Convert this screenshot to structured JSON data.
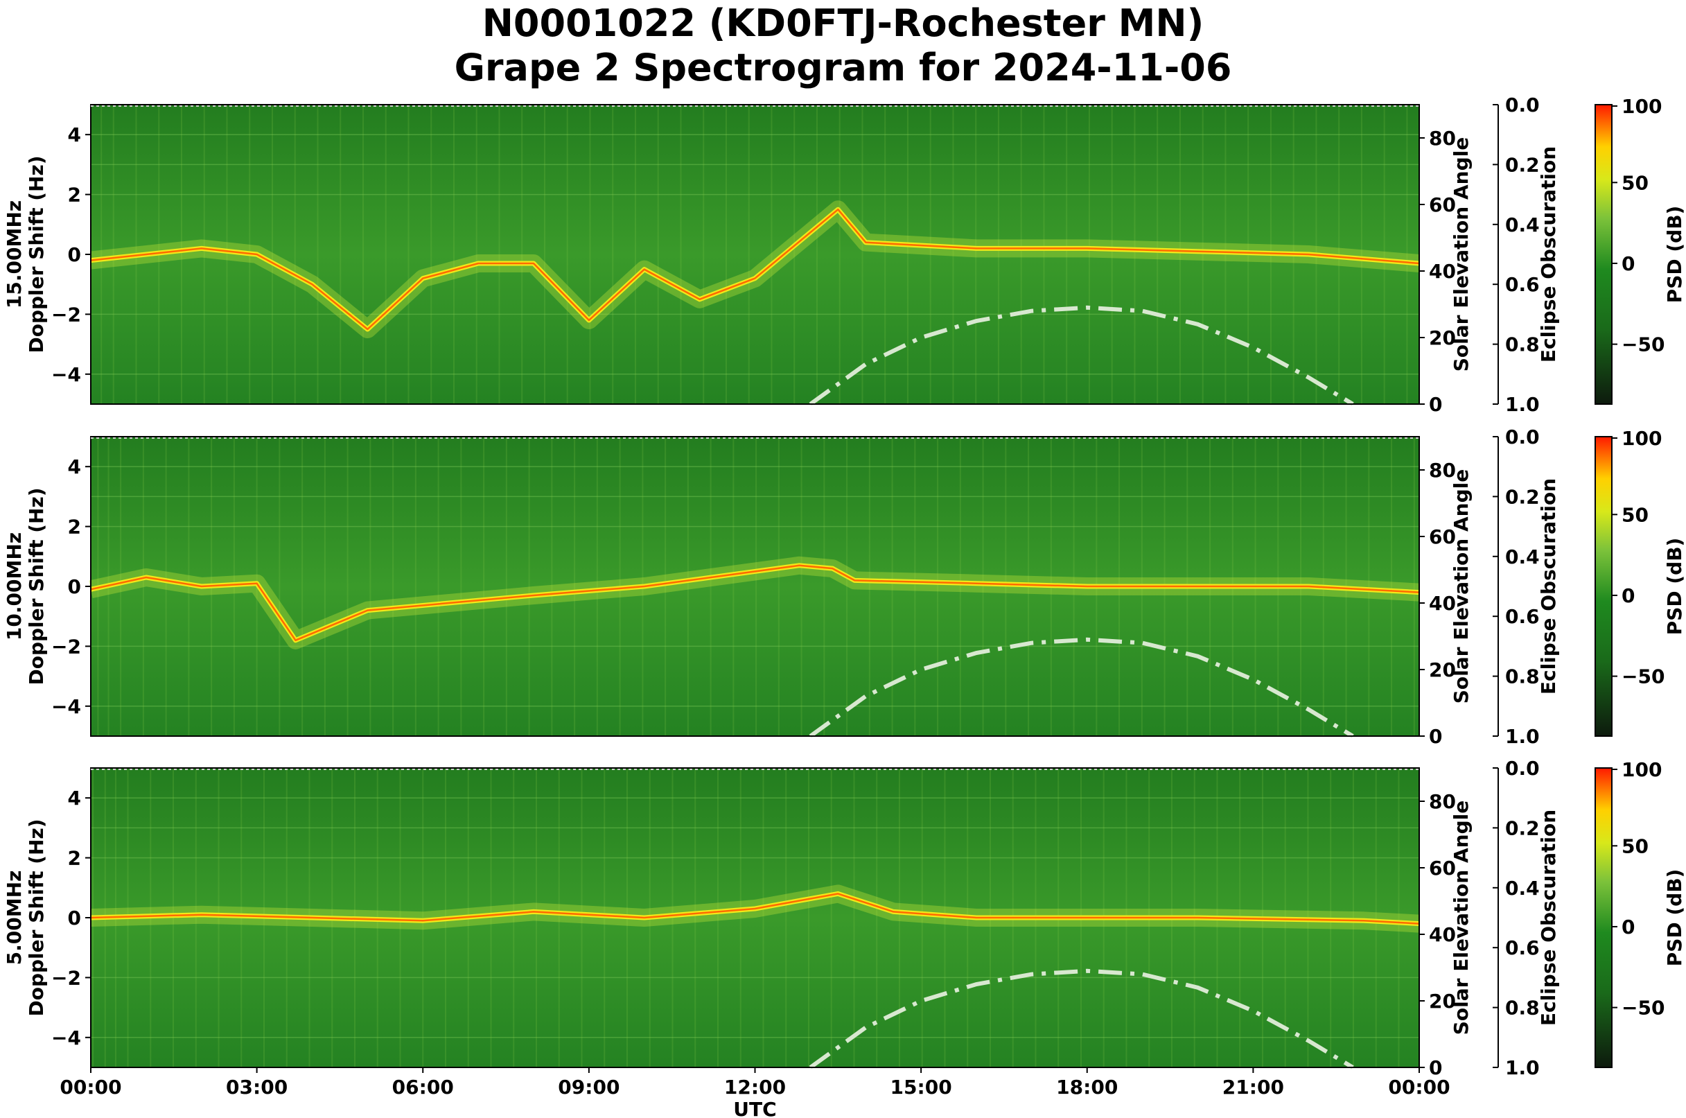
{
  "title_line1": "N0001022 (KD0FTJ-Rochester MN)",
  "title_line2": "Grape 2 Spectrogram for 2024-11-06",
  "x_axis": {
    "label": "UTC",
    "tick_labels": [
      "00:00",
      "03:00",
      "06:00",
      "09:00",
      "12:00",
      "15:00",
      "18:00",
      "21:00",
      "00:00"
    ],
    "range_hours": [
      0,
      24
    ]
  },
  "colors": {
    "colormap": [
      "#0d1a0d",
      "#1a5a1a",
      "#1f7f1f",
      "#3fa82f",
      "#a8d82f",
      "#f2f20a",
      "#ff9f00",
      "#ff1a00"
    ],
    "elevation_curve": "#d8e8d0"
  },
  "chart_data": [
    {
      "type": "heatmap",
      "panel": "15.00MHz",
      "ylabel_line1": "15.00MHz",
      "ylabel_line2": "Doppler Shift (Hz)",
      "ylim": [
        -5,
        5
      ],
      "yticks": [
        "4",
        "2",
        "0",
        "−2",
        "−4"
      ],
      "right_axis_label": "Solar Elevation Angle",
      "right_ylim": [
        0,
        90
      ],
      "right_ticks": [
        "80",
        "60",
        "40",
        "20",
        "0"
      ],
      "eclipse_label": "Eclipse Obscuration",
      "eclipse_ticks": [
        "0.0",
        "0.2",
        "0.4",
        "0.6",
        "0.8",
        "1.0"
      ],
      "colorbar_label": "PSD (dB)",
      "colorbar_ticks": [
        "100",
        "50",
        "0",
        "−50"
      ],
      "doppler_trace_hz": [
        [
          0,
          -0.2
        ],
        [
          1,
          0
        ],
        [
          2,
          0.2
        ],
        [
          3,
          0
        ],
        [
          4,
          -1
        ],
        [
          5,
          -2.5
        ],
        [
          6,
          -0.8
        ],
        [
          7,
          -0.3
        ],
        [
          8,
          -0.3
        ],
        [
          9,
          -2.2
        ],
        [
          10,
          -0.5
        ],
        [
          11,
          -1.5
        ],
        [
          12,
          -0.8
        ],
        [
          13.5,
          1.5
        ],
        [
          14,
          0.4
        ],
        [
          16,
          0.2
        ],
        [
          18,
          0.2
        ],
        [
          20,
          0.1
        ],
        [
          22,
          0
        ],
        [
          24,
          -0.3
        ]
      ],
      "solar_elevation_deg": [
        [
          13,
          0
        ],
        [
          14,
          12
        ],
        [
          15,
          20
        ],
        [
          16,
          25
        ],
        [
          17,
          28
        ],
        [
          18,
          29
        ],
        [
          19,
          28
        ],
        [
          20,
          24
        ],
        [
          21,
          17
        ],
        [
          22,
          8
        ],
        [
          22.8,
          0
        ]
      ]
    },
    {
      "type": "heatmap",
      "panel": "10.00MHz",
      "ylabel_line1": "10.00MHz",
      "ylabel_line2": "Doppler Shift (Hz)",
      "ylim": [
        -5,
        5
      ],
      "yticks": [
        "4",
        "2",
        "0",
        "−2",
        "−4"
      ],
      "right_axis_label": "Solar Elevation Angle",
      "right_ylim": [
        0,
        90
      ],
      "right_ticks": [
        "80",
        "60",
        "40",
        "20",
        "0"
      ],
      "eclipse_label": "Eclipse Obscuration",
      "eclipse_ticks": [
        "0.0",
        "0.2",
        "0.4",
        "0.6",
        "0.8",
        "1.0"
      ],
      "colorbar_label": "PSD (dB)",
      "colorbar_ticks": [
        "100",
        "50",
        "0",
        "−50"
      ],
      "doppler_trace_hz": [
        [
          0,
          -0.1
        ],
        [
          1,
          0.3
        ],
        [
          2,
          0
        ],
        [
          3,
          0.1
        ],
        [
          3.7,
          -1.8
        ],
        [
          5,
          -0.8
        ],
        [
          8,
          -0.3
        ],
        [
          10,
          0
        ],
        [
          12.8,
          0.7
        ],
        [
          13.4,
          0.6
        ],
        [
          13.8,
          0.2
        ],
        [
          16,
          0.1
        ],
        [
          18,
          0
        ],
        [
          20,
          0
        ],
        [
          22,
          0
        ],
        [
          24,
          -0.2
        ]
      ],
      "solar_elevation_deg": [
        [
          13,
          0
        ],
        [
          14,
          12
        ],
        [
          15,
          20
        ],
        [
          16,
          25
        ],
        [
          17,
          28
        ],
        [
          18,
          29
        ],
        [
          19,
          28
        ],
        [
          20,
          24
        ],
        [
          21,
          17
        ],
        [
          22,
          8
        ],
        [
          22.8,
          0
        ]
      ]
    },
    {
      "type": "heatmap",
      "panel": "5.00MHz",
      "ylabel_line1": "5.00MHz",
      "ylabel_line2": "Doppler Shift (Hz)",
      "ylim": [
        -5,
        5
      ],
      "yticks": [
        "4",
        "2",
        "0",
        "−2",
        "−4"
      ],
      "right_axis_label": "Solar Elevation Angle",
      "right_ylim": [
        0,
        90
      ],
      "right_ticks": [
        "80",
        "60",
        "40",
        "20",
        "0"
      ],
      "eclipse_label": "Eclipse Obscuration",
      "eclipse_ticks": [
        "0.0",
        "0.2",
        "0.4",
        "0.6",
        "0.8",
        "1.0"
      ],
      "colorbar_label": "PSD (dB)",
      "colorbar_ticks": [
        "100",
        "50",
        "0",
        "−50"
      ],
      "doppler_trace_hz": [
        [
          0,
          0
        ],
        [
          2,
          0.1
        ],
        [
          4,
          0
        ],
        [
          6,
          -0.1
        ],
        [
          8,
          0.2
        ],
        [
          10,
          0
        ],
        [
          12,
          0.3
        ],
        [
          13.5,
          0.8
        ],
        [
          14.5,
          0.2
        ],
        [
          16,
          0
        ],
        [
          20,
          0
        ],
        [
          23,
          -0.1
        ],
        [
          24,
          -0.2
        ]
      ],
      "solar_elevation_deg": [
        [
          13,
          0
        ],
        [
          14,
          12
        ],
        [
          15,
          20
        ],
        [
          16,
          25
        ],
        [
          17,
          28
        ],
        [
          18,
          29
        ],
        [
          19,
          28
        ],
        [
          20,
          24
        ],
        [
          21,
          17
        ],
        [
          22,
          8
        ],
        [
          22.8,
          0
        ]
      ]
    }
  ]
}
